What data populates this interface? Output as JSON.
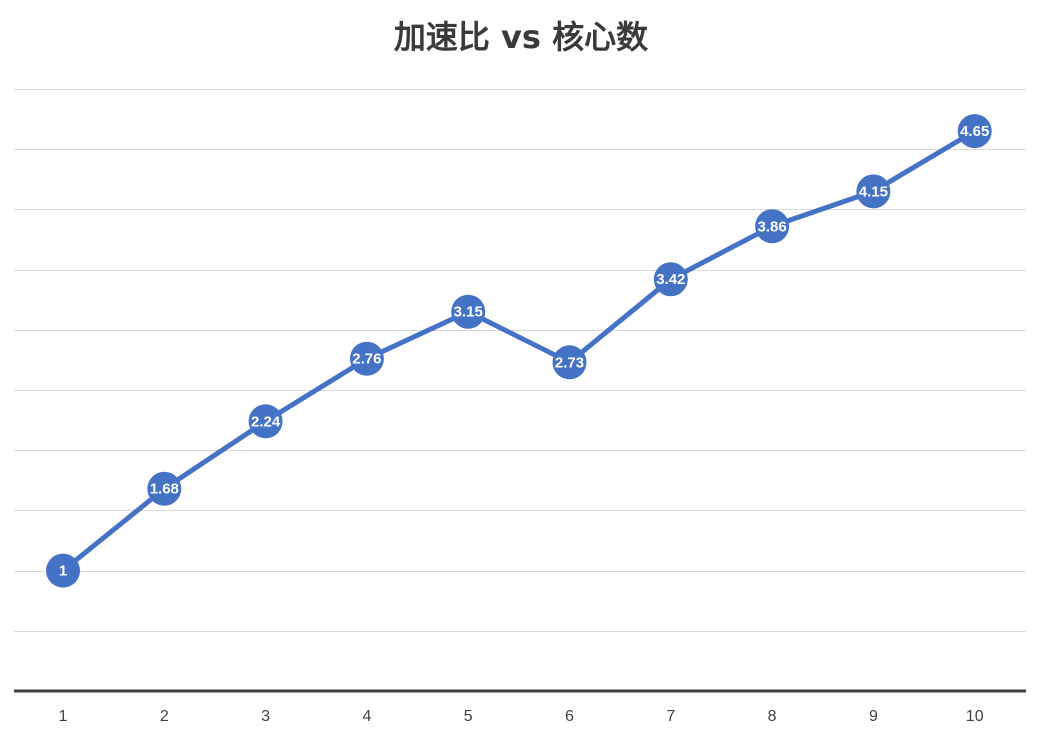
{
  "chart_data": {
    "type": "line",
    "title": "加速比 vs 核心数",
    "xlabel": "",
    "ylabel": "",
    "categories": [
      "1",
      "2",
      "3",
      "4",
      "5",
      "6",
      "7",
      "8",
      "9",
      "10"
    ],
    "series": [
      {
        "values": [
          1,
          1.68,
          2.24,
          2.76,
          3.15,
          2.73,
          3.42,
          3.86,
          4.15,
          4.65
        ],
        "color": "#4472c4"
      }
    ],
    "data_labels": [
      "1",
      "1.68",
      "2.24",
      "2.76",
      "3.15",
      "2.73",
      "3.42",
      "3.86",
      "4.15",
      "4.65"
    ],
    "ylim": [
      0,
      5
    ],
    "grid": true,
    "y_tick_labels_visible": false,
    "legend": "none"
  }
}
